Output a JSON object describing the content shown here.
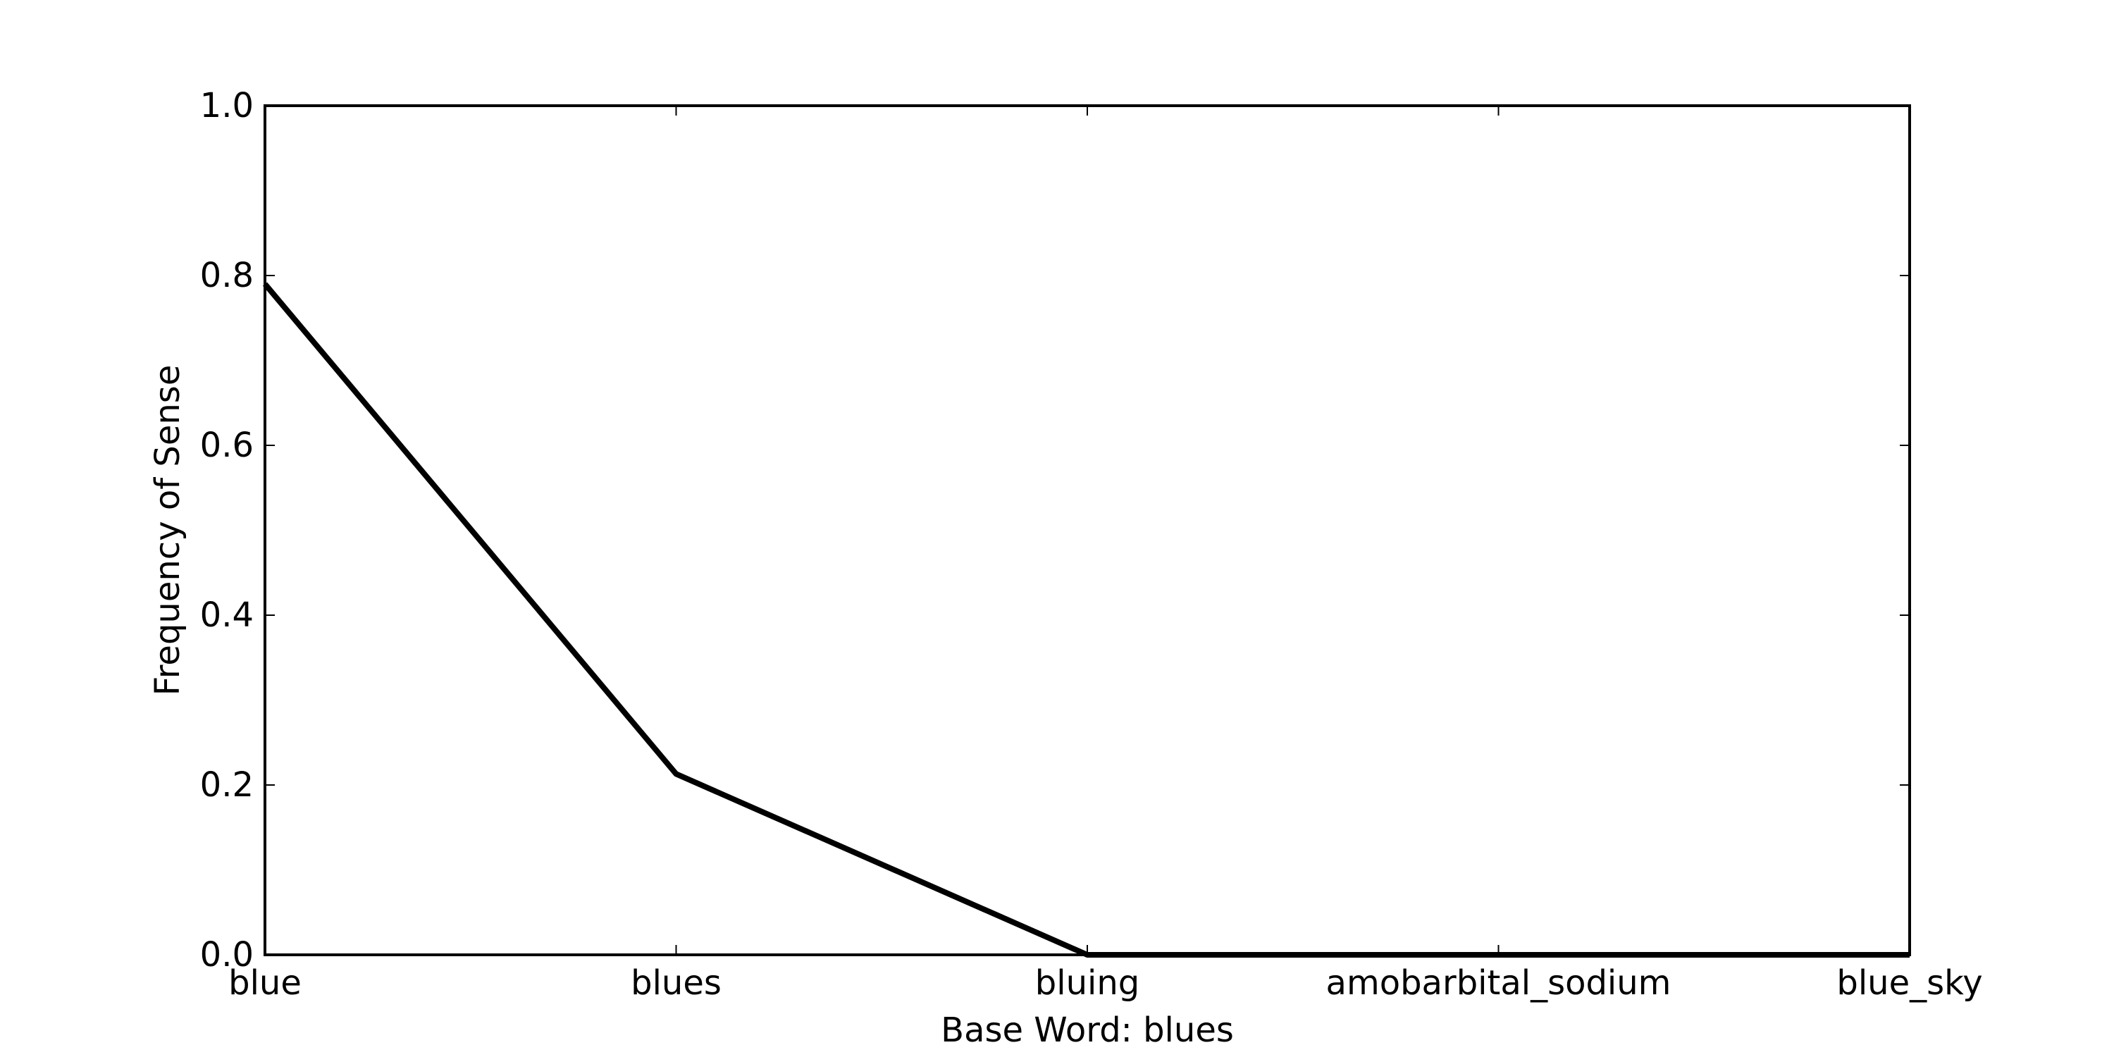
{
  "chart_data": {
    "type": "line",
    "title": "",
    "xlabel": "Base Word: blues",
    "ylabel": "Frequency of Sense",
    "categories": [
      "blue",
      "blues",
      "bluing",
      "amobarbital_sodium",
      "blue_sky"
    ],
    "series": [
      {
        "values": [
          0.79,
          0.213,
          0.0,
          0.0,
          0.0
        ],
        "color": "#000000"
      }
    ],
    "ylim": [
      0.0,
      1.0
    ],
    "yticks": [
      "0.0",
      "0.2",
      "0.4",
      "0.6",
      "0.8",
      "1.0"
    ],
    "grid": false,
    "legend": "none"
  }
}
